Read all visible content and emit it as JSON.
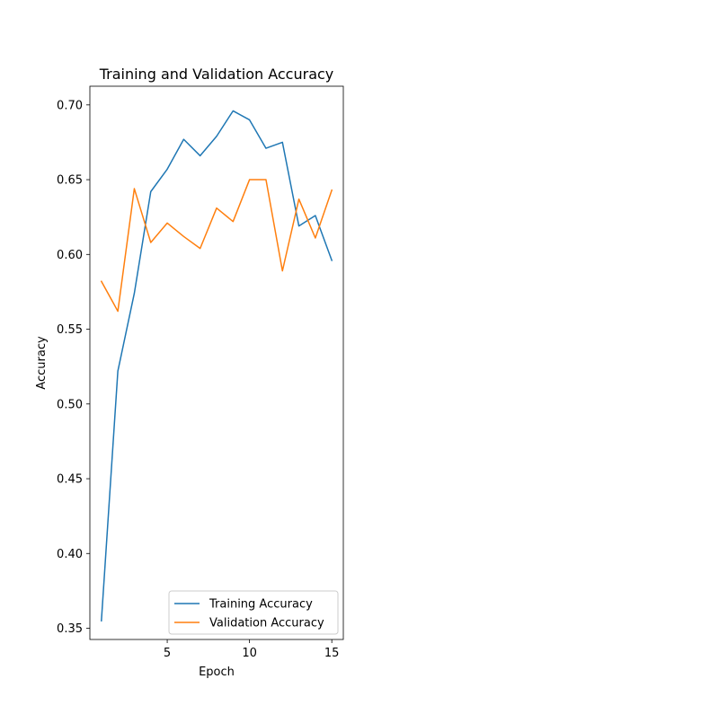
{
  "chart_data": {
    "type": "line",
    "title": "Training and Validation Accuracy",
    "xlabel": "Epoch",
    "ylabel": "Accuracy",
    "xlim": [
      0.3,
      15.7
    ],
    "ylim": [
      0.3425,
      0.7125
    ],
    "xticks": [
      5,
      10,
      15
    ],
    "yticks": [
      0.35,
      0.4,
      0.45,
      0.5,
      0.55,
      0.6,
      0.65,
      0.7
    ],
    "ytick_labels": [
      "0.35",
      "0.40",
      "0.45",
      "0.50",
      "0.55",
      "0.60",
      "0.65",
      "0.70"
    ],
    "grid": false,
    "legend_position": "lower-right",
    "x": [
      1,
      2,
      3,
      4,
      5,
      6,
      7,
      8,
      9,
      10,
      11,
      12,
      13,
      14,
      15
    ],
    "series": [
      {
        "name": "Training Accuracy",
        "color": "#1f77b4",
        "values": [
          0.355,
          0.522,
          0.574,
          0.642,
          0.657,
          0.677,
          0.666,
          0.679,
          0.696,
          0.69,
          0.671,
          0.675,
          0.619,
          0.626,
          0.596
        ]
      },
      {
        "name": "Validation Accuracy",
        "color": "#ff7f0e",
        "values": [
          0.582,
          0.562,
          0.644,
          0.608,
          0.621,
          0.612,
          0.604,
          0.631,
          0.622,
          0.65,
          0.65,
          0.589,
          0.637,
          0.611,
          0.643
        ]
      }
    ]
  }
}
